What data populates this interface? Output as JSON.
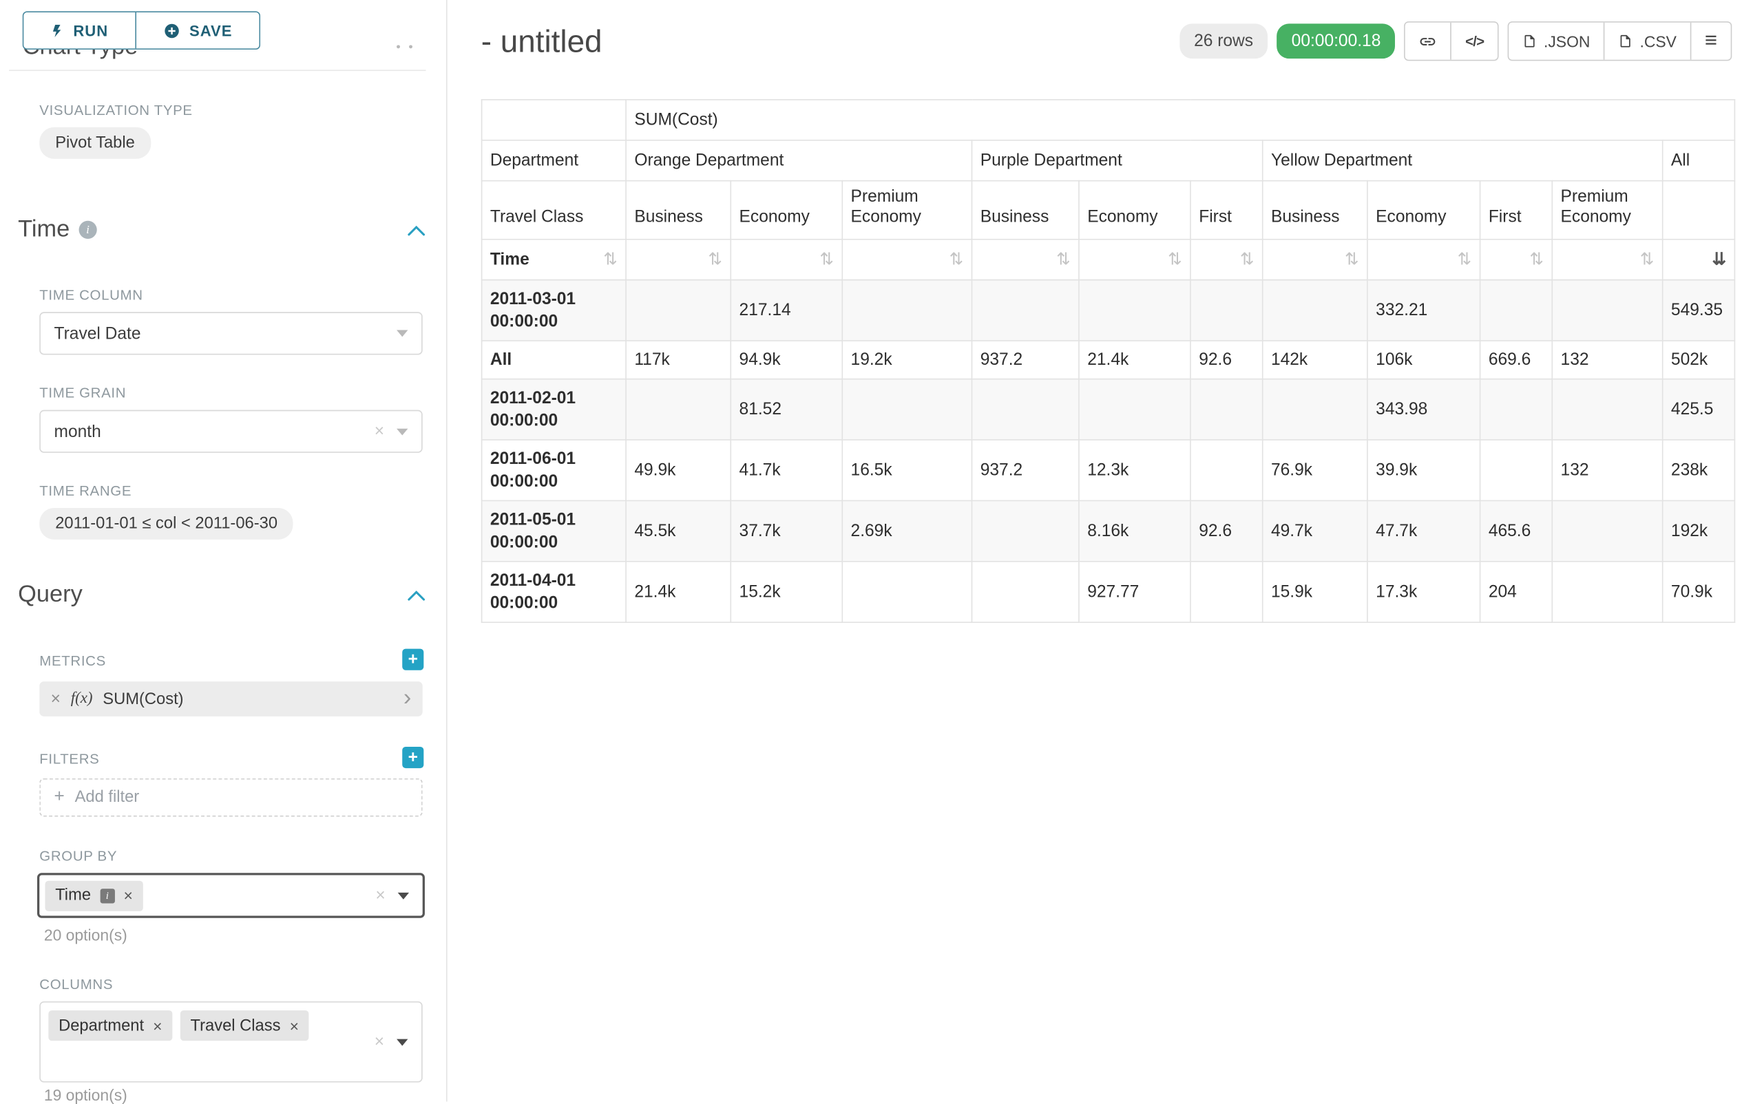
{
  "colors": {
    "accent_teal": "#24A3C5",
    "timer_green": "#47B163",
    "table_border": "#E2E2E2"
  },
  "icons": {
    "plus": "+",
    "close": "×",
    "chevron_right": "›",
    "code": "</>",
    "menu": "≡",
    "info": "i",
    "sort_unsorted": "⇅",
    "sort_sorted_desc": "⇊"
  },
  "toolbar": {
    "run_label": "RUN",
    "save_label": "SAVE"
  },
  "sidebar": {
    "clipped_heading": "Chart Type",
    "viz": {
      "label": "VISUALIZATION TYPE",
      "value": "Pivot Table"
    },
    "time": {
      "title": "Time",
      "column_label": "TIME COLUMN",
      "column_value": "Travel Date",
      "grain_label": "TIME GRAIN",
      "grain_value": "month",
      "range_label": "TIME RANGE",
      "range_value": "2011-01-01 ≤ col < 2011-06-30"
    },
    "query": {
      "title": "Query",
      "metrics_label": "METRICS",
      "metric_fx": "f(x)",
      "metric_value": "SUM(Cost)",
      "filters_label": "FILTERS",
      "add_filter_label": "Add filter",
      "groupby_label": "GROUP BY",
      "groupby_value": "Time",
      "groupby_options": "20 option(s)",
      "columns_label": "COLUMNS",
      "columns_values": [
        "Department",
        "Travel Class"
      ],
      "columns_options": "19 option(s)"
    }
  },
  "header": {
    "title": "- untitled",
    "rows_badge": "26 rows",
    "timer_badge": "00:00:00.18",
    "json_label": ".JSON",
    "csv_label": ".CSV"
  },
  "pivot_table": {
    "type": "table",
    "metric_header": "SUM(Cost)",
    "department_label": "Department",
    "travel_class_label": "Travel Class",
    "time_label": "Time",
    "col_groups": [
      {
        "label": "Orange Department",
        "cols": [
          "Business",
          "Economy",
          "Premium Economy"
        ]
      },
      {
        "label": "Purple Department",
        "cols": [
          "Business",
          "Economy",
          "First"
        ]
      },
      {
        "label": "Yellow Department",
        "cols": [
          "Business",
          "Economy",
          "First",
          "Premium Economy"
        ]
      },
      {
        "label": "All",
        "cols": [
          ""
        ]
      }
    ],
    "rows": [
      {
        "label": "2011-03-01 00:00:00",
        "values": [
          "",
          "217.14",
          "",
          "",
          "",
          "",
          "",
          "332.21",
          "",
          "",
          "549.35"
        ]
      },
      {
        "label": "All",
        "values": [
          "117k",
          "94.9k",
          "19.2k",
          "937.2",
          "21.4k",
          "92.6",
          "142k",
          "106k",
          "669.6",
          "132",
          "502k"
        ]
      },
      {
        "label": "2011-02-01 00:00:00",
        "values": [
          "",
          "81.52",
          "",
          "",
          "",
          "",
          "",
          "343.98",
          "",
          "",
          "425.5"
        ]
      },
      {
        "label": "2011-06-01 00:00:00",
        "values": [
          "49.9k",
          "41.7k",
          "16.5k",
          "937.2",
          "12.3k",
          "",
          "76.9k",
          "39.9k",
          "",
          "132",
          "238k"
        ]
      },
      {
        "label": "2011-05-01 00:00:00",
        "values": [
          "45.5k",
          "37.7k",
          "2.69k",
          "",
          "8.16k",
          "92.6",
          "49.7k",
          "47.7k",
          "465.6",
          "",
          "192k"
        ]
      },
      {
        "label": "2011-04-01 00:00:00",
        "values": [
          "21.4k",
          "15.2k",
          "",
          "",
          "927.77",
          "",
          "15.9k",
          "17.3k",
          "204",
          "",
          "70.9k"
        ]
      }
    ]
  }
}
